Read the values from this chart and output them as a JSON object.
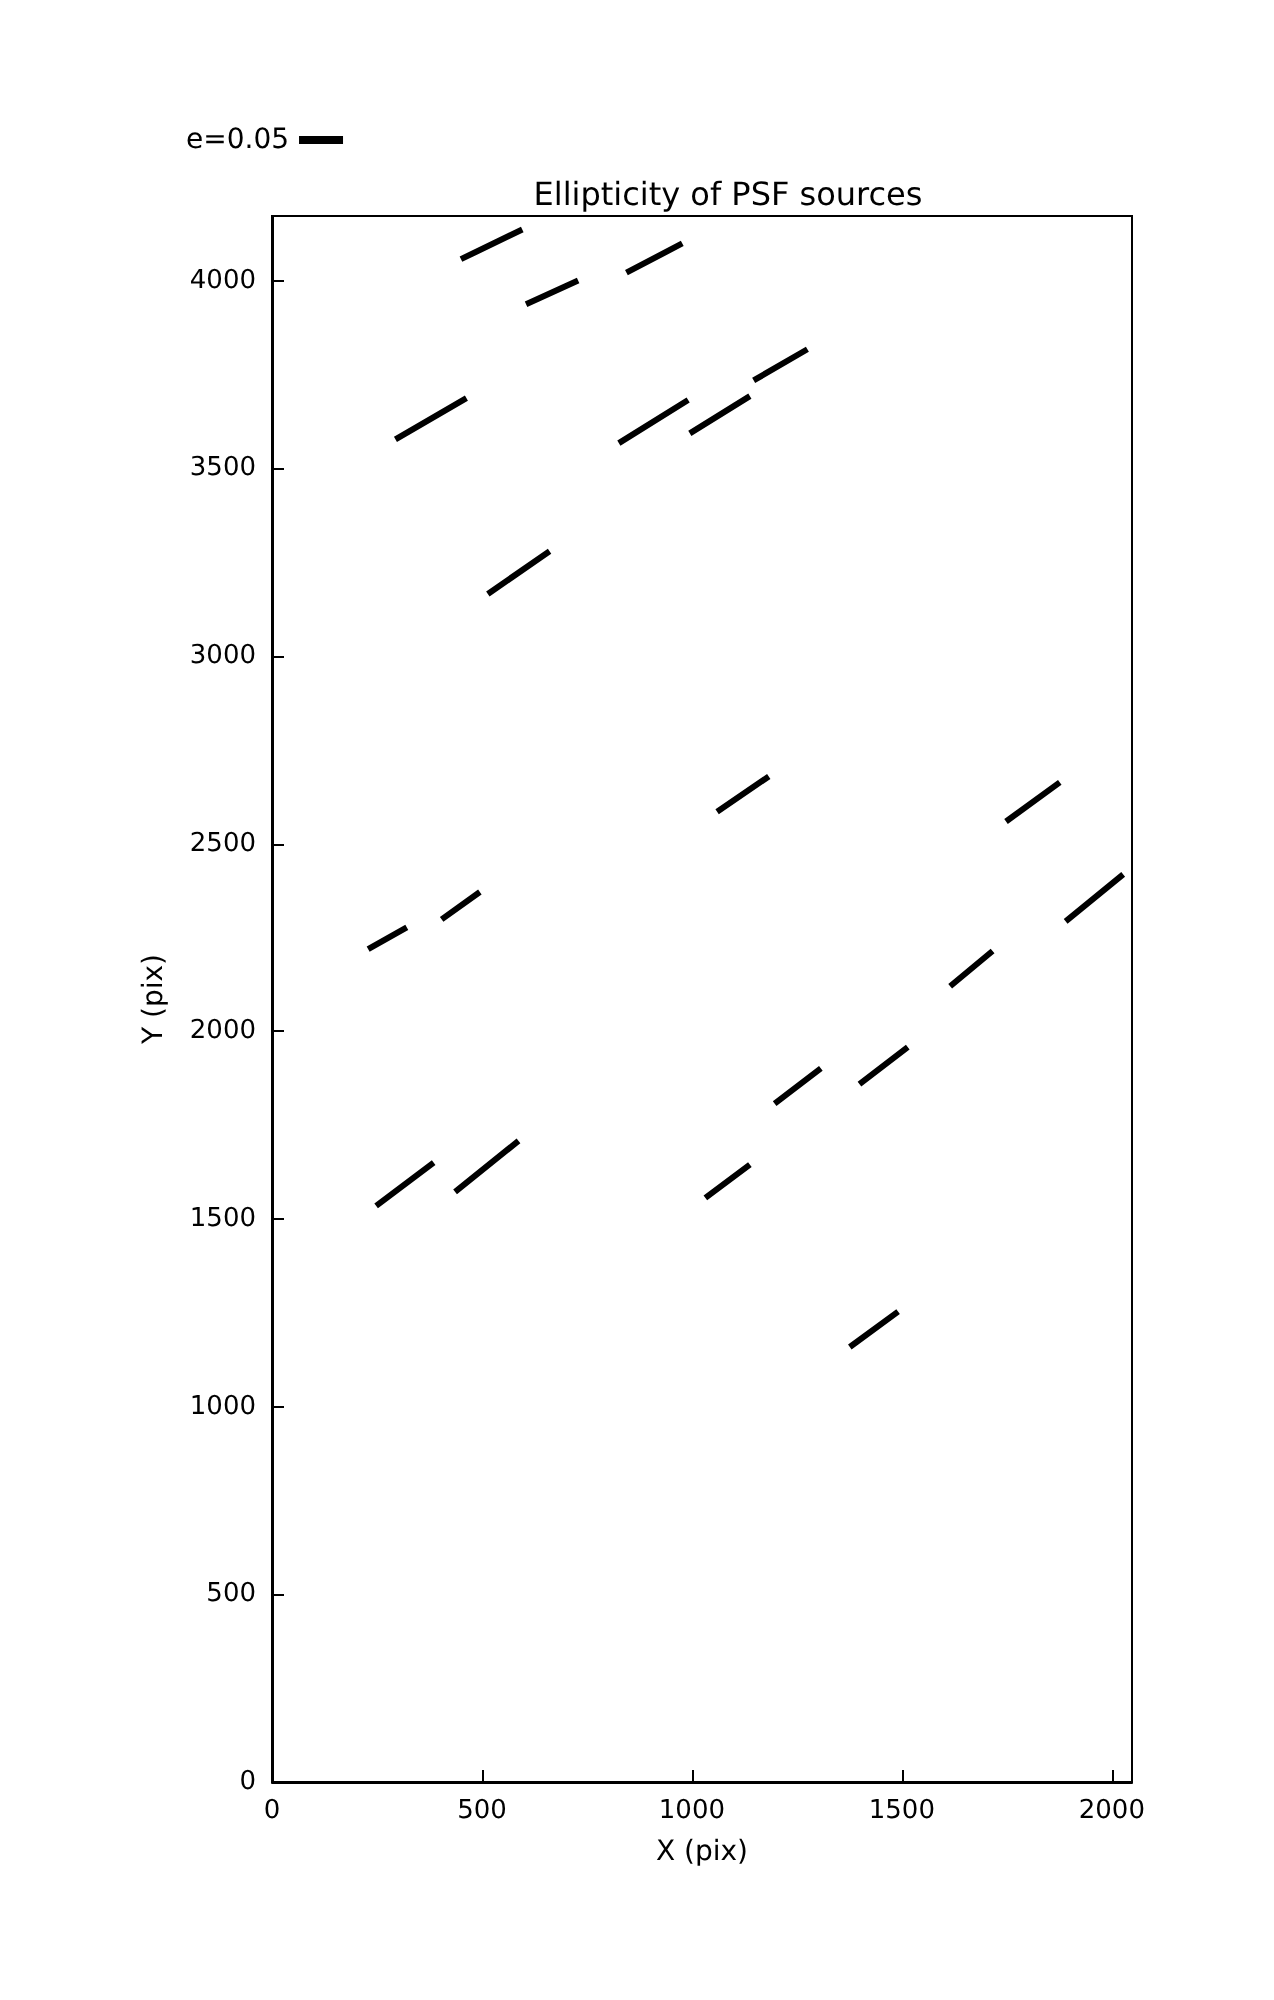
{
  "chart_data": {
    "type": "line",
    "title": "Ellipticity of PSF sources",
    "xlabel": "X (pix)",
    "ylabel": "Y (pix)",
    "xlim": [
      0,
      2048
    ],
    "ylim": [
      0,
      4172
    ],
    "xticks": [
      0,
      500,
      1000,
      1500,
      2000
    ],
    "yticks": [
      0,
      500,
      1000,
      1500,
      2000,
      2500,
      3000,
      3500,
      4000
    ],
    "grid": false,
    "legend": "top left",
    "line_style": "solid",
    "series": [
      {
        "name": "e=0.05",
        "color": "#000000",
        "x": [
          450,
          596,
          null,
          605,
          729,
          null,
          844,
          977,
          null,
          294,
          463,
          null,
          826,
          991,
          null,
          995,
          1138,
          null,
          1147,
          1275,
          null,
          514,
          661,
          null,
          1060,
          1183,
          null,
          1748,
          1876,
          null,
          229,
          321,
          null,
          404,
          495,
          null,
          1890,
          2027,
          null,
          1615,
          1716,
          null,
          1197,
          1307,
          null,
          1399,
          1514,
          null,
          248,
          385,
          null,
          436,
          587,
          null,
          1032,
          1138,
          null,
          1376,
          1491
        ],
        "values": [
          4057,
          4136,
          null,
          3937,
          4000,
          null,
          4021,
          4099,
          null,
          3577,
          3687,
          null,
          3567,
          3682,
          null,
          3593,
          3692,
          null,
          3734,
          3817,
          null,
          3165,
          3279,
          null,
          2585,
          2679,
          null,
          2559,
          2663,
          null,
          2219,
          2277,
          null,
          2298,
          2371,
          null,
          2293,
          2418,
          null,
          2120,
          2214,
          null,
          1807,
          1901,
          null,
          1859,
          1958,
          null,
          1535,
          1650,
          null,
          1572,
          1708,
          null,
          1556,
          1645,
          null,
          1159,
          1253
        ]
      }
    ]
  }
}
